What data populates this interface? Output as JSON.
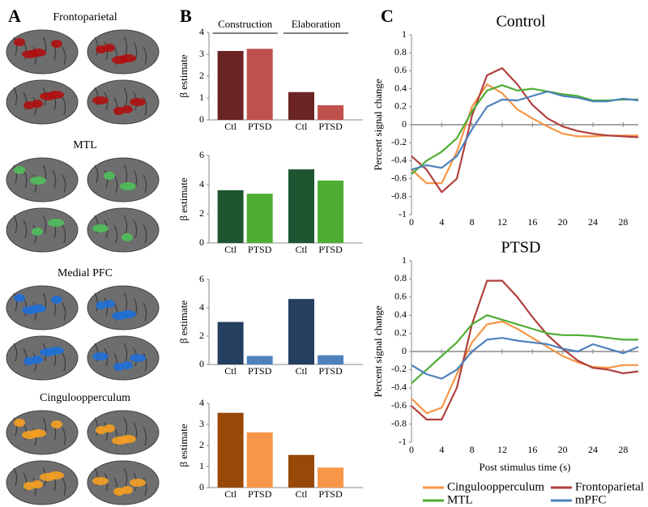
{
  "panels": {
    "a": "A",
    "b": "B",
    "c": "C"
  },
  "brain_regions": [
    "Frontoparietal",
    "MTL",
    "Medial PFC",
    "Cinguloopperculum"
  ],
  "chart_data": [
    {
      "type": "bar",
      "groups": [
        "Construction",
        "Elaboration"
      ],
      "ylabel": "β estimate",
      "categories": [
        "Ctl",
        "PTSD",
        "Ctl",
        "PTSD"
      ],
      "values": [
        3.15,
        3.25,
        1.27,
        0.67
      ],
      "colors": [
        "#6b2424",
        "#c0504d",
        "#6b2424",
        "#c0504d"
      ],
      "ylim": [
        0,
        4
      ],
      "yticks": [
        0,
        1,
        2,
        3,
        4
      ]
    },
    {
      "type": "bar",
      "ylabel": "β estimate",
      "categories": [
        "Ctl",
        "PTSD",
        "Ctl",
        "PTSD"
      ],
      "values": [
        3.62,
        3.38,
        5.05,
        4.28
      ],
      "colors": [
        "#1e5631",
        "#4ead33",
        "#1e5631",
        "#4ead33"
      ],
      "ylim": [
        0,
        6
      ],
      "yticks": [
        0,
        2,
        4,
        6
      ]
    },
    {
      "type": "bar",
      "ylabel": "β estimate",
      "categories": [
        "Ctl",
        "PTSD",
        "Ctl",
        "PTSD"
      ],
      "values": [
        3.0,
        0.6,
        4.62,
        0.65
      ],
      "colors": [
        "#243f60",
        "#4f81bd",
        "#243f60",
        "#4f81bd"
      ],
      "ylim": [
        0,
        6
      ],
      "yticks": [
        0,
        2,
        4,
        6
      ]
    },
    {
      "type": "bar",
      "ylabel": "β estimate",
      "categories": [
        "Ctl",
        "PTSD",
        "Ctl",
        "PTSD"
      ],
      "values": [
        3.55,
        2.62,
        1.55,
        0.95
      ],
      "colors": [
        "#984807",
        "#f79646",
        "#984807",
        "#f79646"
      ],
      "ylim": [
        0,
        4
      ],
      "yticks": [
        0,
        1,
        2,
        3,
        4
      ]
    },
    {
      "type": "line",
      "title": "Control",
      "ylabel": "Percent signal change",
      "x": [
        0,
        2,
        4,
        6,
        8,
        10,
        12,
        14,
        16,
        18,
        20,
        22,
        24,
        26,
        28,
        30
      ],
      "xlim": [
        0,
        30
      ],
      "xticks": [
        0,
        4,
        8,
        12,
        16,
        20,
        24,
        28
      ],
      "ylim": [
        -1,
        1
      ],
      "yticks": [
        -1,
        -0.8,
        -0.6,
        -0.4,
        -0.2,
        0,
        0.2,
        0.4,
        0.6,
        0.8,
        1
      ],
      "series": [
        {
          "color": "#f79646",
          "values": [
            -0.5,
            -0.65,
            -0.65,
            -0.3,
            0.2,
            0.45,
            0.35,
            0.17,
            0.07,
            -0.02,
            -0.1,
            -0.13,
            -0.13,
            -0.12,
            -0.12,
            -0.12
          ]
        },
        {
          "color": "#b0413e",
          "values": [
            -0.35,
            -0.5,
            -0.75,
            -0.6,
            0.1,
            0.55,
            0.63,
            0.45,
            0.22,
            0.07,
            -0.02,
            -0.07,
            -0.1,
            -0.12,
            -0.13,
            -0.14
          ]
        },
        {
          "color": "#4ead33",
          "values": [
            -0.55,
            -0.4,
            -0.3,
            -0.15,
            0.15,
            0.38,
            0.44,
            0.38,
            0.4,
            0.37,
            0.34,
            0.32,
            0.27,
            0.27,
            0.28,
            0.28
          ]
        },
        {
          "color": "#4f81bd",
          "values": [
            -0.5,
            -0.45,
            -0.48,
            -0.35,
            -0.05,
            0.2,
            0.28,
            0.27,
            0.32,
            0.37,
            0.32,
            0.3,
            0.26,
            0.26,
            0.29,
            0.27
          ]
        }
      ]
    },
    {
      "type": "line",
      "title": "PTSD",
      "ylabel": "Percent signal change",
      "xlabel": "Post stimulus time (s)",
      "x": [
        0,
        2,
        4,
        6,
        8,
        10,
        12,
        14,
        16,
        18,
        20,
        22,
        24,
        26,
        28,
        30
      ],
      "xlim": [
        0,
        30
      ],
      "xticks": [
        0,
        4,
        8,
        12,
        16,
        20,
        24,
        28
      ],
      "ylim": [
        -1,
        1
      ],
      "yticks": [
        -1,
        -0.8,
        -0.6,
        -0.4,
        -0.2,
        0,
        0.2,
        0.4,
        0.6,
        0.8,
        1
      ],
      "series": [
        {
          "name": "Cinguloopperculum",
          "color": "#f79646",
          "values": [
            -0.52,
            -0.68,
            -0.62,
            -0.25,
            0.1,
            0.3,
            0.33,
            0.25,
            0.15,
            0.05,
            -0.05,
            -0.12,
            -0.17,
            -0.18,
            -0.15,
            -0.15
          ]
        },
        {
          "name": "Frontoparietal",
          "color": "#b0413e",
          "values": [
            -0.6,
            -0.75,
            -0.75,
            -0.4,
            0.3,
            0.78,
            0.78,
            0.6,
            0.38,
            0.18,
            0.03,
            -0.1,
            -0.18,
            -0.2,
            -0.24,
            -0.22
          ]
        },
        {
          "name": "MTL",
          "color": "#4ead33",
          "values": [
            -0.35,
            -0.2,
            -0.05,
            0.1,
            0.3,
            0.4,
            0.35,
            0.3,
            0.25,
            0.2,
            0.18,
            0.18,
            0.17,
            0.15,
            0.13,
            0.13
          ]
        },
        {
          "name": "mPFC",
          "color": "#4f81bd",
          "values": [
            -0.15,
            -0.25,
            -0.3,
            -0.2,
            0.0,
            0.13,
            0.15,
            0.12,
            0.1,
            0.08,
            0.03,
            0.0,
            0.08,
            0.03,
            -0.02,
            0.05
          ]
        }
      ]
    }
  ]
}
